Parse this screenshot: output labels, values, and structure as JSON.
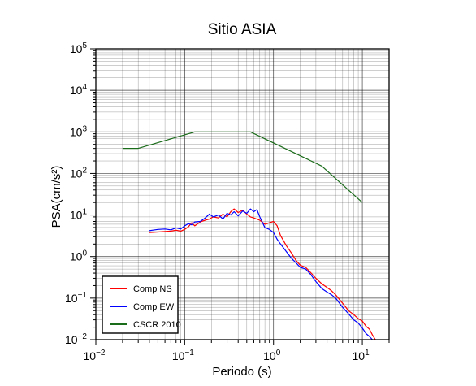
{
  "chart_data": {
    "type": "line",
    "title": "Sitio ASIA",
    "xlabel": "Periodo (s)",
    "ylabel": "PSA(cm/s²)",
    "x_scale": "log",
    "y_scale": "log",
    "xlim": [
      0.01,
      20
    ],
    "ylim": [
      0.01,
      100000
    ],
    "grid": true,
    "legend_position": "bottom-left",
    "x_ticks": [
      {
        "base": "10",
        "exp": "−2"
      },
      {
        "base": "10",
        "exp": "−1"
      },
      {
        "base": "10",
        "exp": "0"
      },
      {
        "base": "10",
        "exp": "1"
      }
    ],
    "y_ticks": [
      {
        "base": "10",
        "exp": "−2"
      },
      {
        "base": "10",
        "exp": "−1"
      },
      {
        "base": "10",
        "exp": "0"
      },
      {
        "base": "10",
        "exp": "1"
      },
      {
        "base": "10",
        "exp": "2"
      },
      {
        "base": "10",
        "exp": "3"
      },
      {
        "base": "10",
        "exp": "4"
      },
      {
        "base": "10",
        "exp": "5"
      }
    ],
    "series": [
      {
        "name": "Comp NS",
        "color": "#ff0000",
        "points": [
          [
            0.04,
            3.8
          ],
          [
            0.05,
            3.9
          ],
          [
            0.06,
            4.0
          ],
          [
            0.07,
            4.1
          ],
          [
            0.08,
            4.3
          ],
          [
            0.09,
            4.1
          ],
          [
            0.1,
            4.5
          ],
          [
            0.11,
            5.2
          ],
          [
            0.12,
            6.5
          ],
          [
            0.13,
            5.5
          ],
          [
            0.15,
            6.8
          ],
          [
            0.17,
            7.5
          ],
          [
            0.19,
            8.0
          ],
          [
            0.21,
            9.0
          ],
          [
            0.24,
            8.5
          ],
          [
            0.27,
            10.5
          ],
          [
            0.3,
            9.0
          ],
          [
            0.33,
            12.0
          ],
          [
            0.36,
            14.0
          ],
          [
            0.4,
            11.5
          ],
          [
            0.45,
            13.0
          ],
          [
            0.5,
            10.5
          ],
          [
            0.55,
            9.0
          ],
          [
            0.6,
            8.5
          ],
          [
            0.7,
            7.5
          ],
          [
            0.8,
            6.0
          ],
          [
            0.9,
            6.5
          ],
          [
            1.0,
            7.0
          ],
          [
            1.1,
            5.5
          ],
          [
            1.2,
            3.2
          ],
          [
            1.4,
            1.8
          ],
          [
            1.6,
            1.2
          ],
          [
            1.8,
            0.8
          ],
          [
            2.0,
            0.62
          ],
          [
            2.3,
            0.55
          ],
          [
            2.6,
            0.42
          ],
          [
            3.0,
            0.3
          ],
          [
            3.5,
            0.22
          ],
          [
            4.0,
            0.18
          ],
          [
            4.5,
            0.15
          ],
          [
            5.0,
            0.12
          ],
          [
            6.0,
            0.075
          ],
          [
            7.0,
            0.05
          ],
          [
            8.0,
            0.04
          ],
          [
            9.0,
            0.032
          ],
          [
            10.0,
            0.028
          ],
          [
            11.0,
            0.021
          ],
          [
            12.0,
            0.018
          ],
          [
            13.0,
            0.013
          ],
          [
            14.0,
            0.01
          ]
        ]
      },
      {
        "name": "Comp EW",
        "color": "#0000ff",
        "points": [
          [
            0.04,
            4.2
          ],
          [
            0.05,
            4.5
          ],
          [
            0.06,
            4.6
          ],
          [
            0.07,
            4.4
          ],
          [
            0.08,
            4.9
          ],
          [
            0.09,
            4.6
          ],
          [
            0.1,
            5.5
          ],
          [
            0.11,
            6.2
          ],
          [
            0.12,
            5.8
          ],
          [
            0.13,
            6.8
          ],
          [
            0.15,
            7.0
          ],
          [
            0.17,
            8.5
          ],
          [
            0.19,
            10.5
          ],
          [
            0.21,
            9.0
          ],
          [
            0.24,
            10.0
          ],
          [
            0.27,
            8.0
          ],
          [
            0.3,
            11.0
          ],
          [
            0.33,
            10.0
          ],
          [
            0.36,
            12.0
          ],
          [
            0.4,
            9.5
          ],
          [
            0.45,
            12.5
          ],
          [
            0.5,
            11.0
          ],
          [
            0.55,
            14.0
          ],
          [
            0.6,
            12.0
          ],
          [
            0.65,
            13.5
          ],
          [
            0.7,
            9.0
          ],
          [
            0.8,
            5.0
          ],
          [
            0.9,
            4.5
          ],
          [
            1.0,
            3.8
          ],
          [
            1.1,
            2.6
          ],
          [
            1.2,
            2.0
          ],
          [
            1.4,
            1.3
          ],
          [
            1.6,
            0.9
          ],
          [
            1.8,
            0.7
          ],
          [
            2.0,
            0.55
          ],
          [
            2.3,
            0.5
          ],
          [
            2.6,
            0.38
          ],
          [
            3.0,
            0.25
          ],
          [
            3.5,
            0.17
          ],
          [
            4.0,
            0.14
          ],
          [
            4.5,
            0.12
          ],
          [
            5.0,
            0.1
          ],
          [
            6.0,
            0.06
          ],
          [
            7.0,
            0.042
          ],
          [
            8.0,
            0.03
          ],
          [
            9.0,
            0.025
          ],
          [
            10.0,
            0.019
          ],
          [
            11.0,
            0.014
          ],
          [
            12.0,
            0.012
          ],
          [
            13.0,
            0.01
          ]
        ]
      },
      {
        "name": "CSCR 2010",
        "color": "#1a6b1a",
        "points": [
          [
            0.02,
            400
          ],
          [
            0.03,
            400
          ],
          [
            0.13,
            1000
          ],
          [
            0.55,
            1000
          ],
          [
            3.5,
            150
          ],
          [
            10.0,
            20
          ]
        ]
      }
    ]
  }
}
